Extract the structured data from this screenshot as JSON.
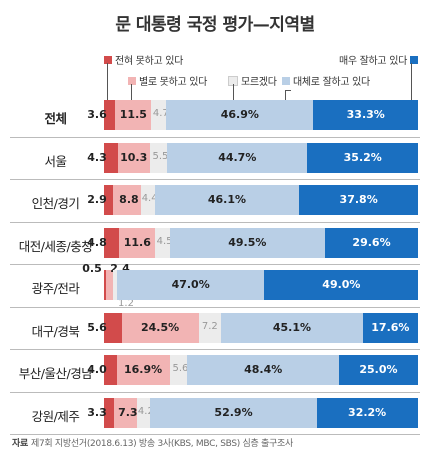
{
  "title": "문 대통령 국정 평가—지역별",
  "source_label": "자료",
  "source_text": "제7회 지방선거(2018.6.13) 방송 3사(KBS, MBC, SBS) 심층 출구조사",
  "colors": {
    "very_bad": "#d24b4b",
    "somewhat_bad": "#f2b4b4",
    "unknown": "#ececec",
    "somewhat_good": "#b9cfe6",
    "very_good": "#1a6fc0"
  },
  "chart_data": {
    "type": "bar",
    "stacked": true,
    "orientation": "horizontal",
    "title": "문 대통령 국정 평가—지역별",
    "categories": [
      "전체",
      "서울",
      "인천/경기",
      "대전/세종/충청",
      "광주/전라",
      "대구/경북",
      "부산/울산/경남",
      "강원/제주"
    ],
    "series": [
      {
        "name": "전혀 못하고 있다",
        "color": "#d24b4b",
        "values": [
          3.6,
          4.3,
          2.9,
          4.8,
          0.5,
          5.6,
          4.0,
          3.3
        ],
        "labels": [
          "3.6",
          "4.3",
          "2.9",
          "4.8",
          "0.5",
          "5.6",
          "4.0",
          "3.3"
        ]
      },
      {
        "name": "별로 못하고 있다",
        "color": "#f2b4b4",
        "values": [
          11.5,
          10.3,
          8.8,
          11.6,
          2.4,
          24.5,
          16.9,
          7.3
        ],
        "labels": [
          "11.5",
          "10.3",
          "8.8",
          "11.6",
          "2.4",
          "24.5%",
          "16.9%",
          "7.3"
        ]
      },
      {
        "name": "모르겠다",
        "color": "#ececec",
        "values": [
          4.7,
          5.5,
          4.4,
          4.5,
          1.2,
          7.2,
          5.6,
          4.2
        ],
        "labels": [
          "4.7",
          "5.5",
          "4.4",
          "4.5",
          "1.2",
          "7.2",
          "5.6",
          "4.2"
        ]
      },
      {
        "name": "대체로 잘하고 있다",
        "color": "#b9cfe6",
        "values": [
          46.9,
          44.7,
          46.1,
          49.5,
          47.0,
          45.1,
          48.4,
          52.9
        ],
        "labels": [
          "46.9%",
          "44.7%",
          "46.1%",
          "49.5%",
          "47.0%",
          "45.1%",
          "48.4%",
          "52.9%"
        ]
      },
      {
        "name": "매우 잘하고 있다",
        "color": "#1a6fc0",
        "values": [
          33.3,
          35.2,
          37.8,
          29.6,
          49.0,
          17.6,
          25.0,
          32.2
        ],
        "labels": [
          "33.3%",
          "35.2%",
          "37.8%",
          "29.6%",
          "49.0%",
          "17.6%",
          "25.0%",
          "32.2%"
        ]
      }
    ],
    "xlim": [
      0,
      100
    ],
    "legend_position": "top"
  }
}
